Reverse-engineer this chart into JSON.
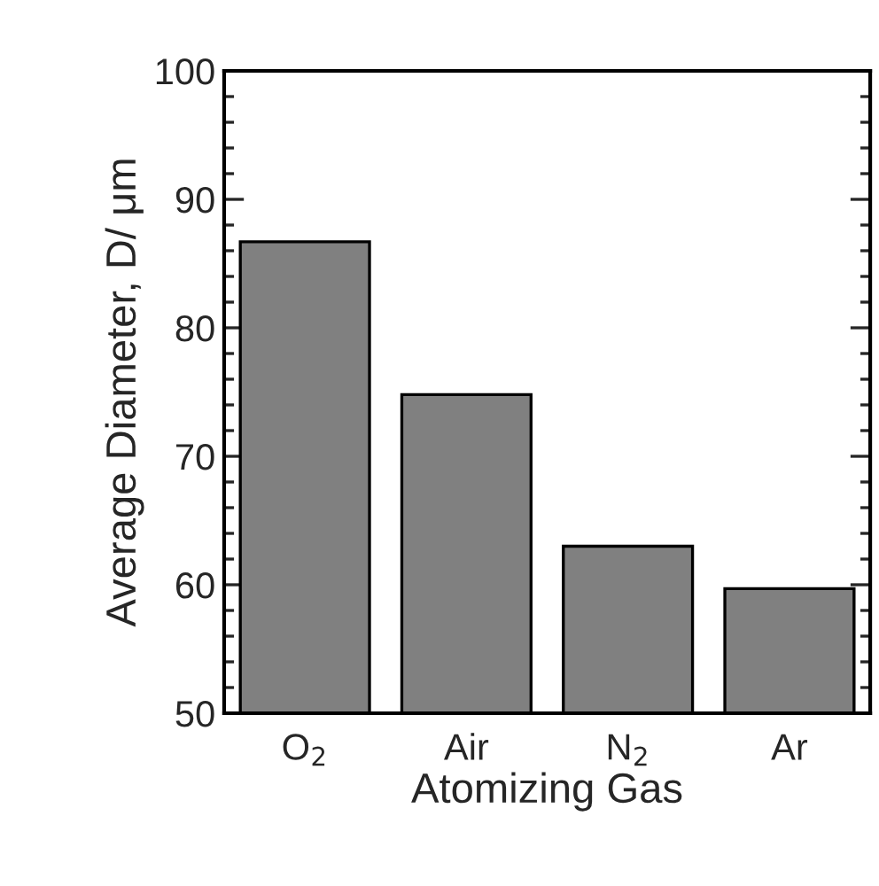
{
  "chart_data": {
    "type": "bar",
    "xlabel": "Atomizing Gas",
    "ylabel": "Average Diameter, D/ μm",
    "categories": [
      "O$_{2}$",
      "Air",
      "N$_{2}$",
      "Ar"
    ],
    "values": [
      86.7,
      74.8,
      63.0,
      59.7
    ],
    "color": "#808080",
    "ylim": [
      50,
      100
    ],
    "yticks": [
      50,
      60,
      70,
      80,
      90,
      100
    ],
    "grid": false,
    "legend": false
  }
}
